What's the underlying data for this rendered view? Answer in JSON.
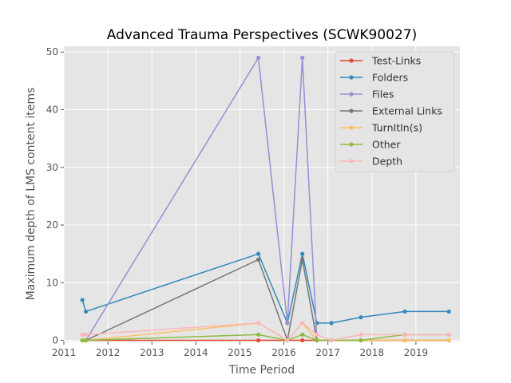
{
  "chart_data": {
    "type": "line",
    "title": "Advanced Trauma Perspectives (SCWK90027)",
    "xlabel": "Time Period",
    "ylabel": "Maximum depth of LMS content items",
    "xlim": [
      2011.0,
      2020.0
    ],
    "ylim": [
      -0.2,
      51
    ],
    "xticks": [
      2011,
      2012,
      2013,
      2014,
      2015,
      2016,
      2017,
      2018,
      2019
    ],
    "yticks": [
      0,
      10,
      20,
      30,
      40,
      50
    ],
    "grid": true,
    "legend_position": "top-right",
    "x": [
      2011.42,
      2011.5,
      2015.42,
      2016.08,
      2016.42,
      2016.75,
      2017.08,
      2017.75,
      2018.75,
      2019.75
    ],
    "series": [
      {
        "name": "Test-Links",
        "color": "#E24A33",
        "values": [
          0,
          0,
          0,
          0,
          0,
          0,
          0,
          0,
          0,
          0
        ]
      },
      {
        "name": "Folders",
        "color": "#348ABD",
        "values": [
          7,
          5,
          15,
          3,
          15,
          3,
          3,
          4,
          5,
          5
        ]
      },
      {
        "name": "Files",
        "color": "#988ED5",
        "values": [
          null,
          0,
          49,
          3,
          49,
          0,
          null,
          null,
          null,
          null
        ]
      },
      {
        "name": "External Links",
        "color": "#777777",
        "values": [
          null,
          0,
          14,
          0,
          14,
          0,
          null,
          null,
          null,
          null
        ]
      },
      {
        "name": "TurnItIn(s)",
        "color": "#FBC15E",
        "values": [
          0,
          0,
          3,
          0,
          3,
          0,
          0,
          0,
          0,
          0
        ]
      },
      {
        "name": "Other",
        "color": "#8EBA42",
        "values": [
          0,
          0,
          1,
          0,
          1,
          0,
          0,
          0,
          1,
          1
        ]
      },
      {
        "name": "Depth",
        "color": "#FFB5B8",
        "values": [
          1,
          1,
          3,
          0,
          3,
          1,
          0,
          1,
          1,
          1
        ]
      }
    ]
  }
}
